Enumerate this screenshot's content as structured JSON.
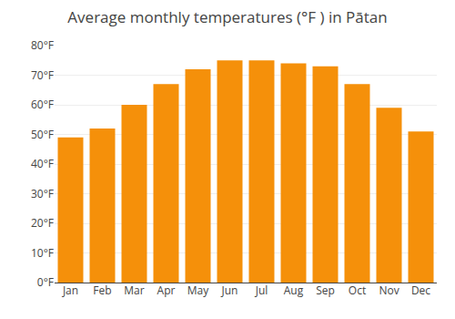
{
  "chart_data": {
    "type": "bar",
    "title": "Average monthly temperatures (°F ) in Pātan",
    "categories": [
      "Jan",
      "Feb",
      "Mar",
      "Apr",
      "May",
      "Jun",
      "Jul",
      "Aug",
      "Sep",
      "Oct",
      "Nov",
      "Dec"
    ],
    "values": [
      49,
      52,
      60,
      67,
      72,
      75,
      75,
      74,
      73,
      67,
      59,
      51
    ],
    "color": "#F5900A",
    "ylim": [
      0,
      80
    ],
    "yticks": [
      {
        "value": 0,
        "label": "0°F"
      },
      {
        "value": 10,
        "label": "10°F"
      },
      {
        "value": 20,
        "label": "20°F"
      },
      {
        "value": 30,
        "label": "30°F"
      },
      {
        "value": 40,
        "label": "40°F"
      },
      {
        "value": 50,
        "label": "50°F"
      },
      {
        "value": 60,
        "label": "60°F"
      },
      {
        "value": 70,
        "label": "70°F"
      },
      {
        "value": 80,
        "label": "80°F"
      }
    ],
    "grid": true
  }
}
